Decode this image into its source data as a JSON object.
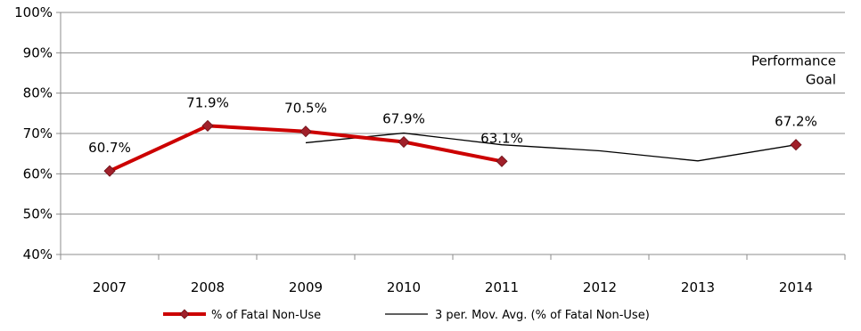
{
  "chart_data": {
    "type": "line",
    "title": "",
    "xlabel": "",
    "ylabel": "",
    "ylim": [
      40,
      100
    ],
    "y_ticks": [
      "40%",
      "50%",
      "60%",
      "70%",
      "80%",
      "90%",
      "100%"
    ],
    "categories": [
      "2007",
      "2008",
      "2009",
      "2010",
      "2011",
      "2012",
      "2013",
      "2014"
    ],
    "grid": true,
    "legend_position": "bottom",
    "series": [
      {
        "name": "% of Fatal Non-Use",
        "color": "#cc0000",
        "marker_color": "#a0202a",
        "marker": "diamond",
        "values": [
          60.7,
          71.9,
          70.5,
          67.9,
          63.1,
          null,
          null,
          null
        ],
        "labels": [
          "60.7%",
          "71.9%",
          "70.5%",
          "67.9%",
          "63.1%",
          null,
          null,
          null
        ]
      },
      {
        "name": "3 per. Mov. Avg. (% of Fatal Non-Use)",
        "color": "#000000",
        "values": [
          null,
          null,
          67.7,
          70.1,
          67.2,
          65.7,
          63.2,
          null
        ]
      }
    ],
    "goal": {
      "category": "2014",
      "value": 67.2,
      "label": "67.2%",
      "title_lines": [
        "Performance",
        "Goal"
      ],
      "marker_color": "#a0202a"
    },
    "goal_link": {
      "from_category": "2013",
      "to_category": "2014"
    }
  }
}
